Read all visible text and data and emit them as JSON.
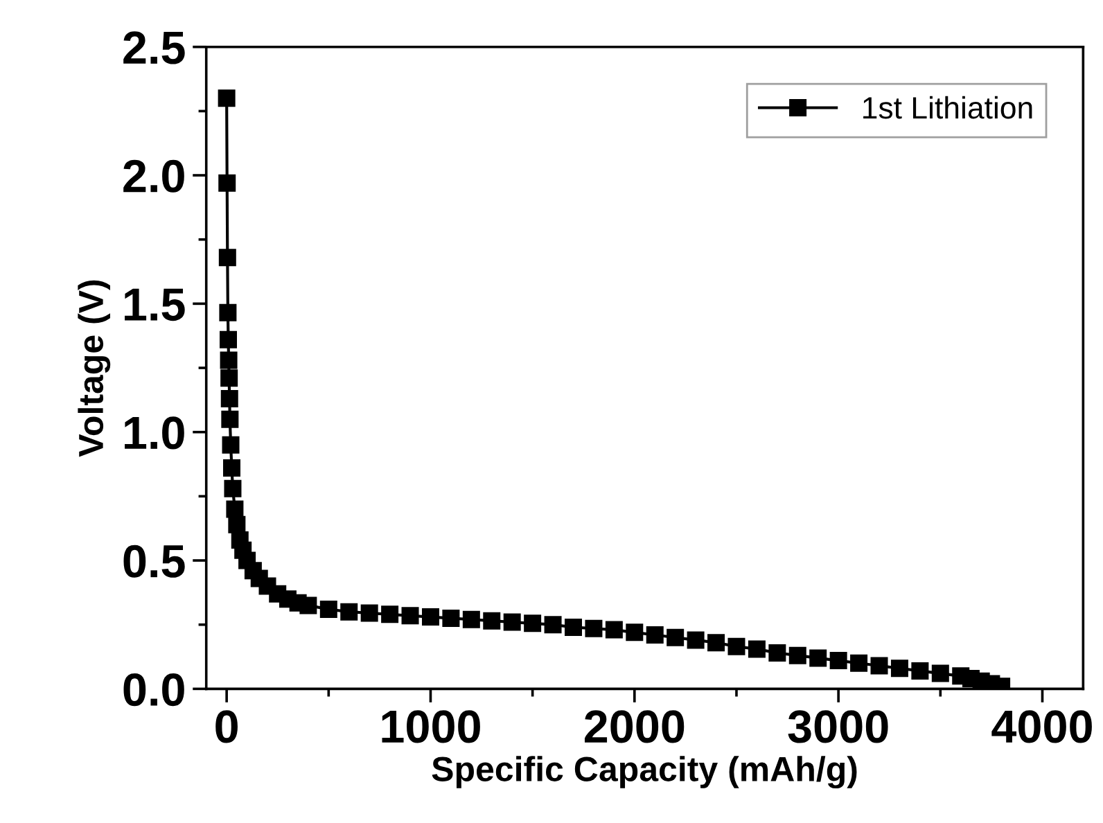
{
  "chart_data": {
    "type": "line",
    "xlabel": "Specific Capacity (mAh/g)",
    "ylabel": "Voltage (V)",
    "xlim": [
      -100,
      4200
    ],
    "ylim": [
      0,
      2.5
    ],
    "xticks": [
      0,
      1000,
      2000,
      3000,
      4000
    ],
    "yticks": [
      {
        "value": 0,
        "label": "0.0"
      },
      {
        "value": 0.5,
        "label": "0.5"
      },
      {
        "value": 1.0,
        "label": "1.0"
      },
      {
        "value": 1.5,
        "label": "1.5"
      },
      {
        "value": 2.0,
        "label": "2.0"
      },
      {
        "value": 2.5,
        "label": "2.5"
      }
    ],
    "marker": "square",
    "line_style": "solid",
    "grid": false,
    "legend": "top right",
    "series": [
      {
        "name": "1st Lithiation",
        "color": "#000000",
        "x": [
          0,
          2,
          4,
          6,
          8,
          10,
          12,
          14,
          16,
          20,
          25,
          30,
          40,
          50,
          65,
          80,
          100,
          130,
          160,
          200,
          250,
          300,
          350,
          400,
          500,
          600,
          700,
          800,
          900,
          1000,
          1100,
          1200,
          1300,
          1400,
          1500,
          1600,
          1700,
          1800,
          1900,
          2000,
          2100,
          2200,
          2300,
          2400,
          2500,
          2600,
          2700,
          2800,
          2900,
          3000,
          3100,
          3200,
          3300,
          3400,
          3500,
          3600,
          3650,
          3700,
          3750,
          3800
        ],
        "values": [
          2.3,
          1.97,
          1.68,
          1.465,
          1.36,
          1.28,
          1.21,
          1.13,
          1.05,
          0.95,
          0.86,
          0.78,
          0.7,
          0.64,
          0.58,
          0.54,
          0.5,
          0.46,
          0.43,
          0.4,
          0.37,
          0.35,
          0.335,
          0.325,
          0.31,
          0.3,
          0.295,
          0.29,
          0.285,
          0.28,
          0.275,
          0.27,
          0.265,
          0.26,
          0.255,
          0.25,
          0.24,
          0.235,
          0.23,
          0.22,
          0.21,
          0.2,
          0.19,
          0.18,
          0.165,
          0.155,
          0.14,
          0.13,
          0.12,
          0.11,
          0.1,
          0.09,
          0.08,
          0.07,
          0.06,
          0.05,
          0.04,
          0.03,
          0.02,
          0.01
        ]
      }
    ]
  }
}
